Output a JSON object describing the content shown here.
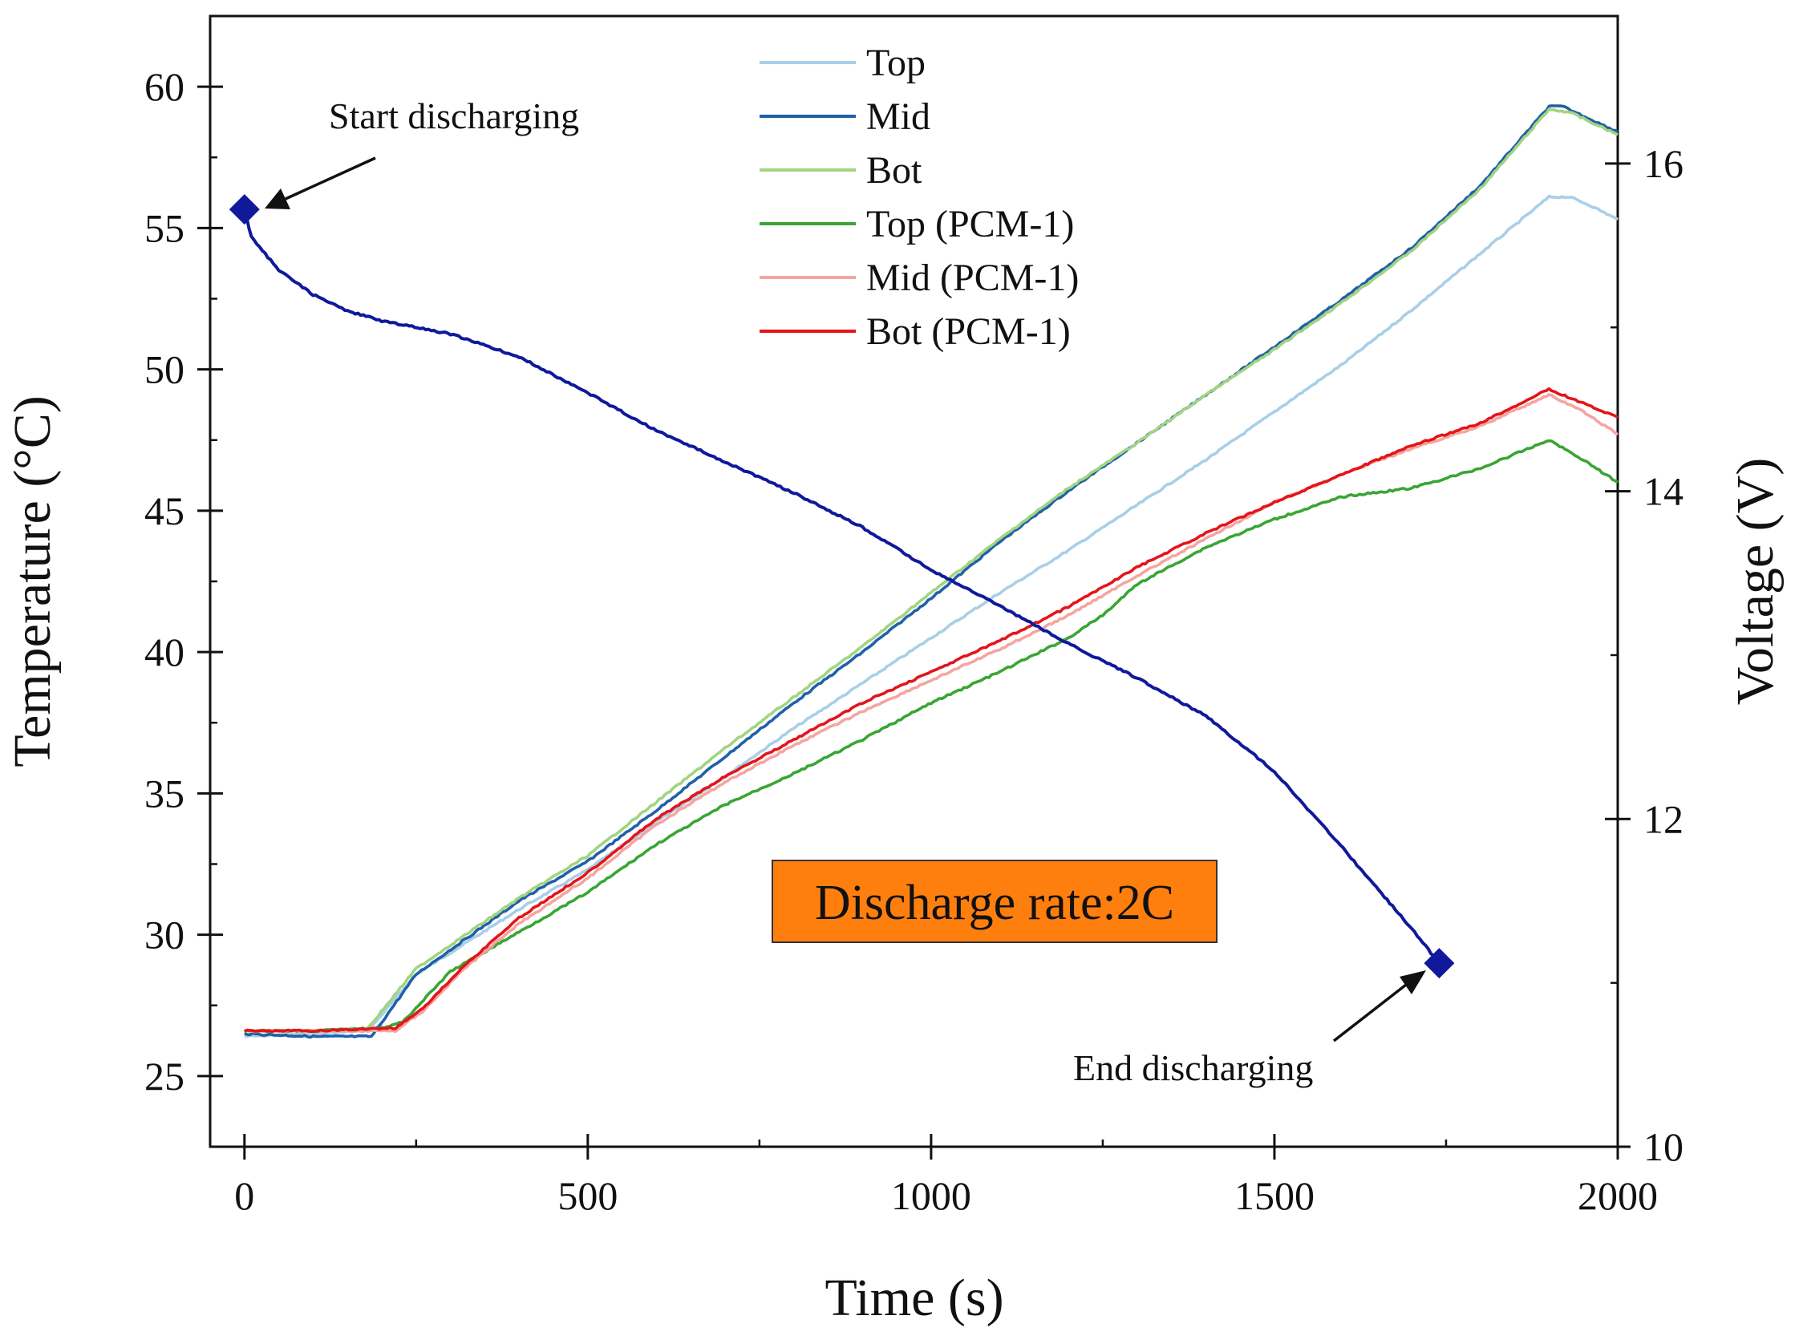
{
  "chart_data": {
    "type": "line",
    "xlabel": "Time (s)",
    "ylabel": "Temperature (°C)",
    "y2label": "Voltage (V)",
    "xlim": [
      -50,
      2000
    ],
    "ylim": [
      22.5,
      62.5
    ],
    "y2lim": [
      10,
      16.9
    ],
    "x_ticks": [
      0,
      500,
      1000,
      1500,
      2000
    ],
    "y_ticks": [
      25,
      30,
      35,
      40,
      45,
      50,
      55,
      60
    ],
    "y2_ticks": [
      10,
      12,
      14,
      16
    ],
    "grid": false,
    "legend_position": "top-center",
    "series": [
      {
        "name": "Top",
        "axis": "left",
        "color": "#a8cfe8",
        "points": [
          [
            0,
            26.4
          ],
          [
            100,
            26.5
          ],
          [
            180,
            26.6
          ],
          [
            250,
            28.6
          ],
          [
            400,
            30.9
          ],
          [
            500,
            32.3
          ],
          [
            600,
            34.0
          ],
          [
            700,
            35.6
          ],
          [
            800,
            37.3
          ],
          [
            900,
            38.9
          ],
          [
            1000,
            40.5
          ],
          [
            1100,
            42.1
          ],
          [
            1200,
            43.6
          ],
          [
            1300,
            45.2
          ],
          [
            1400,
            46.8
          ],
          [
            1500,
            48.5
          ],
          [
            1600,
            50.2
          ],
          [
            1700,
            52.1
          ],
          [
            1800,
            54.1
          ],
          [
            1900,
            56.1
          ],
          [
            1930,
            56.1
          ],
          [
            1960,
            55.8
          ],
          [
            2000,
            55.3
          ]
        ]
      },
      {
        "name": "Mid",
        "axis": "left",
        "color": "#2060a8",
        "points": [
          [
            0,
            26.5
          ],
          [
            100,
            26.4
          ],
          [
            185,
            26.4
          ],
          [
            250,
            28.6
          ],
          [
            400,
            31.2
          ],
          [
            500,
            32.6
          ],
          [
            600,
            34.4
          ],
          [
            700,
            36.3
          ],
          [
            800,
            38.2
          ],
          [
            900,
            40.0
          ],
          [
            1000,
            41.9
          ],
          [
            1100,
            43.9
          ],
          [
            1200,
            45.7
          ],
          [
            1300,
            47.4
          ],
          [
            1400,
            49.1
          ],
          [
            1500,
            50.8
          ],
          [
            1600,
            52.5
          ],
          [
            1700,
            54.3
          ],
          [
            1800,
            56.5
          ],
          [
            1900,
            59.3
          ],
          [
            1920,
            59.3
          ],
          [
            2000,
            58.4
          ]
        ]
      },
      {
        "name": "Bot",
        "axis": "left",
        "color": "#a2d481",
        "points": [
          [
            0,
            26.6
          ],
          [
            100,
            26.6
          ],
          [
            180,
            26.7
          ],
          [
            250,
            28.8
          ],
          [
            400,
            31.3
          ],
          [
            500,
            32.8
          ],
          [
            600,
            34.7
          ],
          [
            700,
            36.6
          ],
          [
            800,
            38.4
          ],
          [
            900,
            40.2
          ],
          [
            1000,
            42.1
          ],
          [
            1100,
            44.0
          ],
          [
            1200,
            45.8
          ],
          [
            1300,
            47.4
          ],
          [
            1400,
            49.1
          ],
          [
            1500,
            50.7
          ],
          [
            1600,
            52.4
          ],
          [
            1700,
            54.2
          ],
          [
            1800,
            56.4
          ],
          [
            1900,
            59.2
          ],
          [
            1930,
            59.1
          ],
          [
            2000,
            58.3
          ]
        ]
      },
      {
        "name": "Top (PCM-1)",
        "axis": "left",
        "color": "#3aa535",
        "points": [
          [
            0,
            26.6
          ],
          [
            100,
            26.6
          ],
          [
            200,
            26.7
          ],
          [
            230,
            26.9
          ],
          [
            300,
            28.7
          ],
          [
            400,
            30.1
          ],
          [
            500,
            31.5
          ],
          [
            600,
            33.2
          ],
          [
            700,
            34.6
          ],
          [
            800,
            35.7
          ],
          [
            900,
            36.9
          ],
          [
            1000,
            38.2
          ],
          [
            1100,
            39.3
          ],
          [
            1200,
            40.5
          ],
          [
            1250,
            41.3
          ],
          [
            1300,
            42.4
          ],
          [
            1400,
            43.7
          ],
          [
            1500,
            44.7
          ],
          [
            1600,
            45.5
          ],
          [
            1700,
            45.8
          ],
          [
            1800,
            46.5
          ],
          [
            1900,
            47.5
          ],
          [
            1950,
            46.8
          ],
          [
            2000,
            46.0
          ]
        ]
      },
      {
        "name": "Mid (PCM-1)",
        "axis": "left",
        "color": "#f5a5a0",
        "points": [
          [
            0,
            26.6
          ],
          [
            100,
            26.6
          ],
          [
            220,
            26.6
          ],
          [
            260,
            27.3
          ],
          [
            320,
            28.8
          ],
          [
            400,
            30.4
          ],
          [
            500,
            32.0
          ],
          [
            600,
            33.9
          ],
          [
            700,
            35.4
          ],
          [
            800,
            36.7
          ],
          [
            900,
            37.9
          ],
          [
            1000,
            39.0
          ],
          [
            1100,
            40.1
          ],
          [
            1200,
            41.3
          ],
          [
            1300,
            42.7
          ],
          [
            1400,
            44.0
          ],
          [
            1500,
            45.3
          ],
          [
            1600,
            46.3
          ],
          [
            1700,
            47.2
          ],
          [
            1800,
            48.0
          ],
          [
            1900,
            49.1
          ],
          [
            1950,
            48.5
          ],
          [
            2000,
            47.7
          ]
        ]
      },
      {
        "name": "Bot  (PCM-1)",
        "axis": "left",
        "color": "#e3151a",
        "points": [
          [
            0,
            26.6
          ],
          [
            100,
            26.6
          ],
          [
            220,
            26.7
          ],
          [
            260,
            27.4
          ],
          [
            320,
            28.9
          ],
          [
            400,
            30.6
          ],
          [
            500,
            32.2
          ],
          [
            600,
            34.1
          ],
          [
            700,
            35.6
          ],
          [
            800,
            36.9
          ],
          [
            900,
            38.2
          ],
          [
            1000,
            39.3
          ],
          [
            1100,
            40.4
          ],
          [
            1200,
            41.6
          ],
          [
            1300,
            43.0
          ],
          [
            1400,
            44.2
          ],
          [
            1500,
            45.3
          ],
          [
            1600,
            46.3
          ],
          [
            1700,
            47.3
          ],
          [
            1800,
            48.1
          ],
          [
            1900,
            49.3
          ],
          [
            1950,
            48.8
          ],
          [
            2000,
            48.3
          ]
        ]
      },
      {
        "name": "Voltage",
        "axis": "right",
        "color": "#10199a",
        "points": [
          [
            0,
            15.72
          ],
          [
            10,
            15.55
          ],
          [
            50,
            15.35
          ],
          [
            100,
            15.2
          ],
          [
            150,
            15.1
          ],
          [
            200,
            15.04
          ],
          [
            300,
            14.96
          ],
          [
            400,
            14.82
          ],
          [
            500,
            14.6
          ],
          [
            600,
            14.37
          ],
          [
            700,
            14.18
          ],
          [
            800,
            13.99
          ],
          [
            900,
            13.78
          ],
          [
            1000,
            13.52
          ],
          [
            1100,
            13.3
          ],
          [
            1200,
            13.07
          ],
          [
            1300,
            12.86
          ],
          [
            1400,
            12.63
          ],
          [
            1500,
            12.29
          ],
          [
            1600,
            11.82
          ],
          [
            1700,
            11.33
          ],
          [
            1740,
            11.12
          ]
        ]
      }
    ],
    "markers": [
      {
        "x": 0,
        "y2": 15.72,
        "label": "Start discharging"
      },
      {
        "x": 1740,
        "y2": 11.12,
        "label": "End discharging"
      }
    ],
    "annotation_box": {
      "text": "Discharge rate:2C",
      "fill": "#ff7f0e"
    }
  }
}
